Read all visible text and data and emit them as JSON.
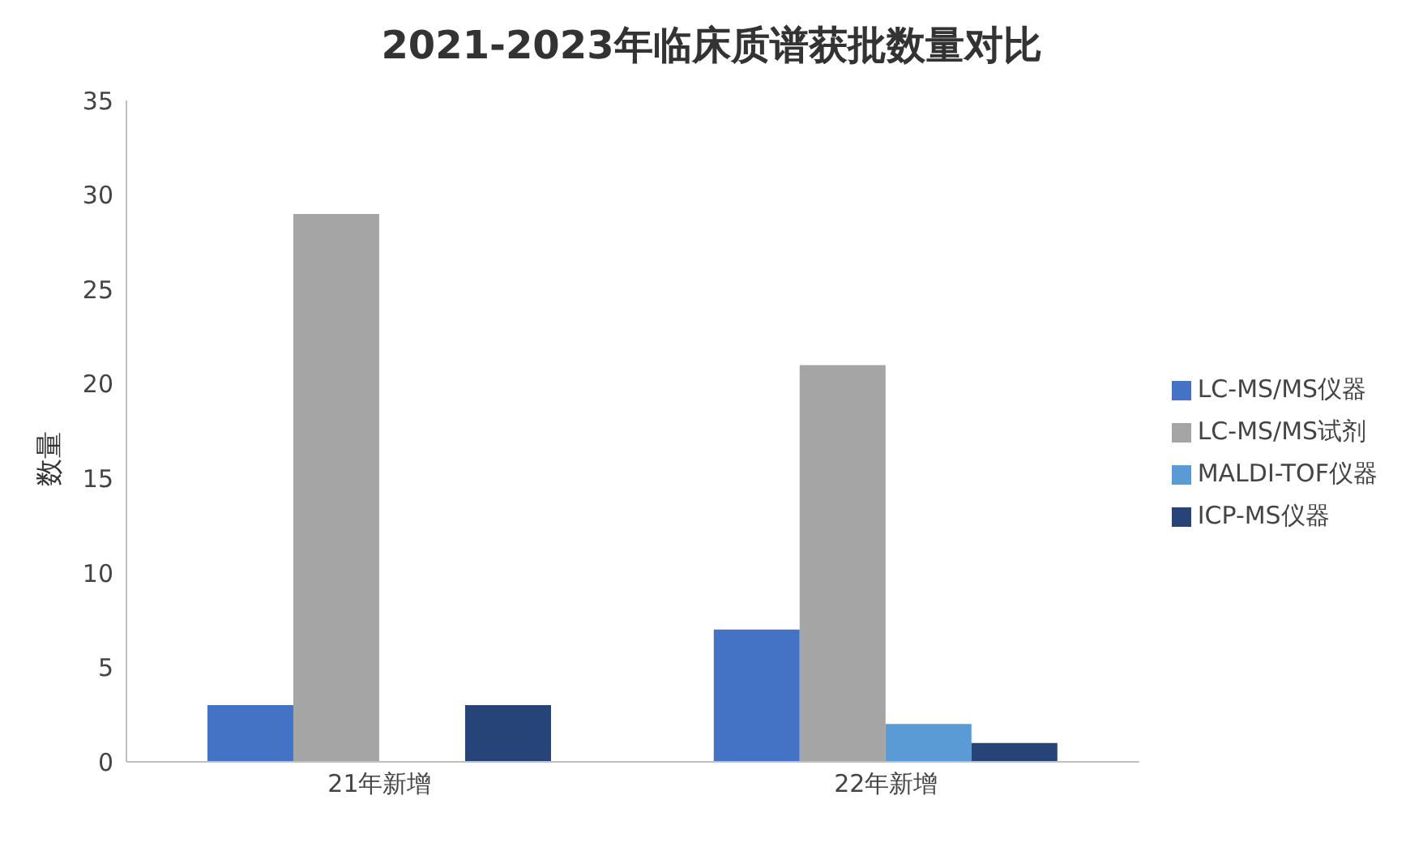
{
  "chart_data": {
    "type": "bar",
    "title": "2021-2023年临床质谱获批数量对比",
    "ylabel": "数量",
    "categories": [
      "21年新增",
      "22年新增"
    ],
    "series": [
      {
        "name": "LC-MS/MS仪器",
        "color": "#4472c4",
        "values": [
          3,
          7
        ]
      },
      {
        "name": "LC-MS/MS试剂",
        "color": "#a5a5a5",
        "values": [
          29,
          21
        ]
      },
      {
        "name": "MALDI-TOF仪器",
        "color": "#5b9bd5",
        "values": [
          0,
          2
        ]
      },
      {
        "name": "ICP-MS仪器",
        "color": "#264478",
        "values": [
          3,
          1
        ]
      }
    ],
    "ylim": [
      0,
      35
    ],
    "yticks": [
      0,
      5,
      10,
      15,
      20,
      25,
      30,
      35
    ],
    "grid": false,
    "legend": "right"
  }
}
